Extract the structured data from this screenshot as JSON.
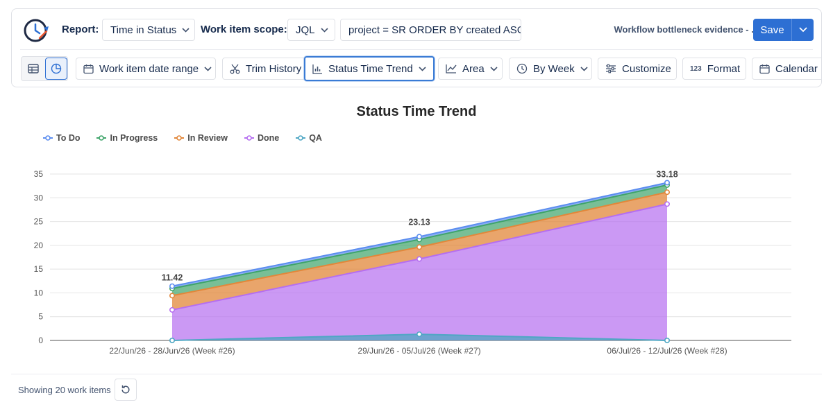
{
  "header": {
    "report_label": "Report:",
    "report_value": "Time in Status",
    "scope_label": "Work item scope:",
    "scope_type": "JQL",
    "jql_query": "project = SR ORDER BY created ASC",
    "report_name": "Workflow bottleneck evidence - ...",
    "save_label": "Save"
  },
  "toolbar": {
    "date_range": "Work item date range",
    "trim_history": "Trim History",
    "chart_view": "Status Time Trend",
    "chart_style": "Area",
    "grouping": "By Week",
    "customize": "Customize",
    "format": "Format",
    "calendar": "Calendar"
  },
  "footer": {
    "showing": "Showing 20 work items"
  },
  "colors": {
    "accent": "#2d6fd3",
    "todo": "#5b8def",
    "in_progress": "#3fa46a",
    "in_review": "#e2873a",
    "done": "#b56ef0",
    "qa": "#4fa7c4"
  },
  "chart_data": {
    "type": "area",
    "title": "Status Time Trend",
    "stacked": true,
    "categories": [
      "22/Jun/26 - 28/Jun/26 (Week #26)",
      "29/Jun/26 - 05/Jul/26 (Week #27)",
      "06/Jul/26 - 12/Jul/26 (Week #28)"
    ],
    "series": [
      {
        "name": "To Do",
        "color": "#5b8def",
        "values": [
          0.5,
          0.6,
          0.5
        ]
      },
      {
        "name": "In Progress",
        "color": "#3fa46a",
        "values": [
          1.5,
          1.6,
          1.5
        ]
      },
      {
        "name": "In Review",
        "color": "#e2873a",
        "values": [
          3.0,
          2.5,
          2.5
        ]
      },
      {
        "name": "Done",
        "color": "#b56ef0",
        "values": [
          6.42,
          17.13,
          28.68
        ]
      },
      {
        "name": "QA",
        "color": "#4fa7c4",
        "values": [
          0,
          1.3,
          0
        ]
      }
    ],
    "totals": [
      11.42,
      23.13,
      33.18
    ],
    "ylim": [
      0,
      35
    ],
    "yticks": [
      0,
      5,
      10,
      15,
      20,
      25,
      30,
      35
    ],
    "legend_position": "top-left",
    "grid": true
  }
}
